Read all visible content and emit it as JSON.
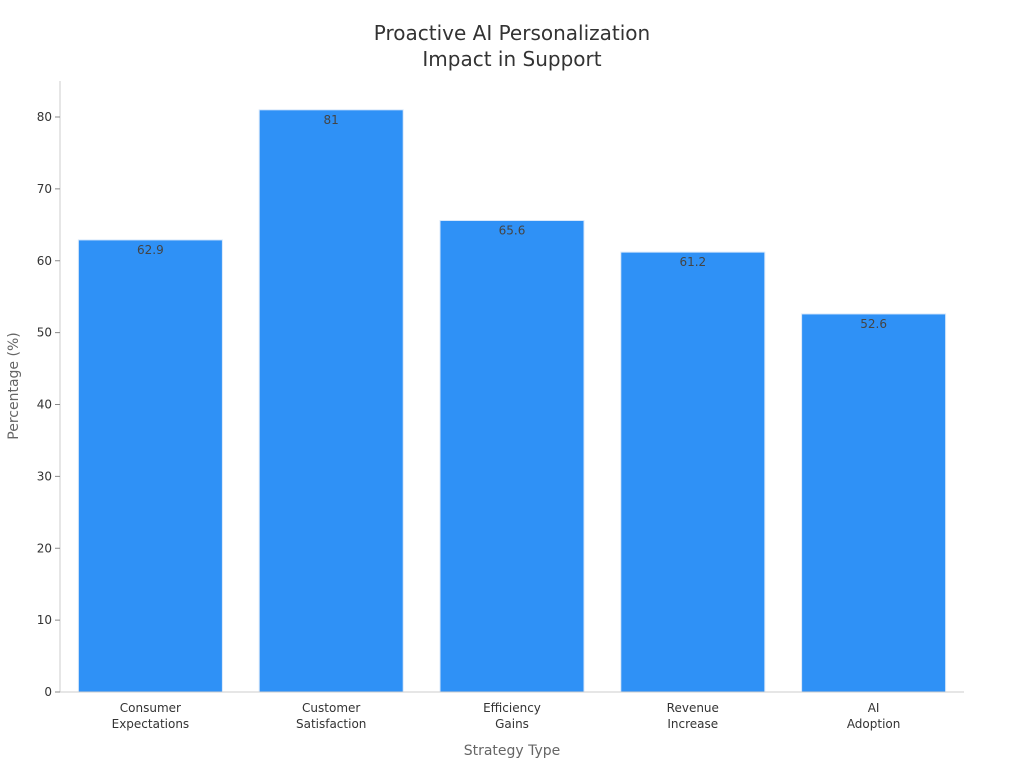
{
  "chart_data": {
    "type": "bar",
    "title_lines": [
      "Proactive AI Personalization",
      "Impact in Support"
    ],
    "xlabel": "Strategy Type",
    "ylabel": "Percentage (%)",
    "categories": [
      [
        "Consumer",
        "Expectations"
      ],
      [
        "Customer",
        "Satisfaction"
      ],
      [
        "Efficiency",
        "Gains"
      ],
      [
        "Revenue",
        "Increase"
      ],
      [
        "AI",
        "Adoption"
      ]
    ],
    "values": [
      62.9,
      81,
      65.6,
      61.2,
      52.6
    ],
    "value_labels": [
      "62.9",
      "81",
      "65.6",
      "61.2",
      "52.6"
    ],
    "yticks": [
      0,
      10,
      20,
      30,
      40,
      50,
      60,
      70,
      80
    ],
    "ytick_labels": [
      "0",
      "10",
      "20",
      "30",
      "40",
      "50",
      "60",
      "70",
      "80"
    ],
    "ylim": [
      0,
      85
    ],
    "grid": false,
    "bar_color": "#2f91f6"
  }
}
